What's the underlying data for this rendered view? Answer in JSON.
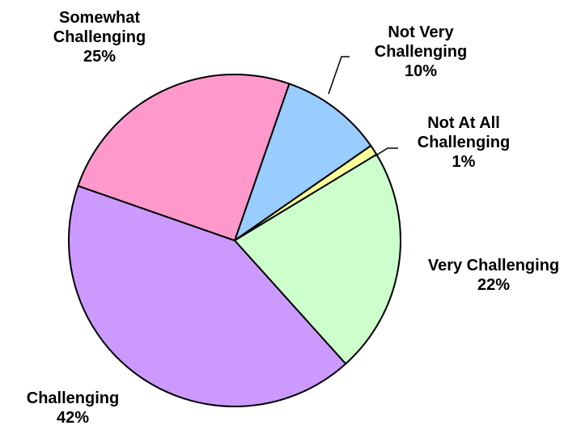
{
  "chart_data": {
    "type": "pie",
    "categories": [
      "Not Very Challenging",
      "Not At All Challenging",
      "Very Challenging",
      "Challenging",
      "Somewhat Challenging"
    ],
    "values": [
      10,
      1,
      22,
      42,
      25
    ],
    "value_labels": [
      "10%",
      "1%",
      "22%",
      "42%",
      "25%"
    ],
    "colors": [
      "#99ccff",
      "#ffff99",
      "#ccffcc",
      "#cc99ff",
      "#ff99cc"
    ]
  }
}
